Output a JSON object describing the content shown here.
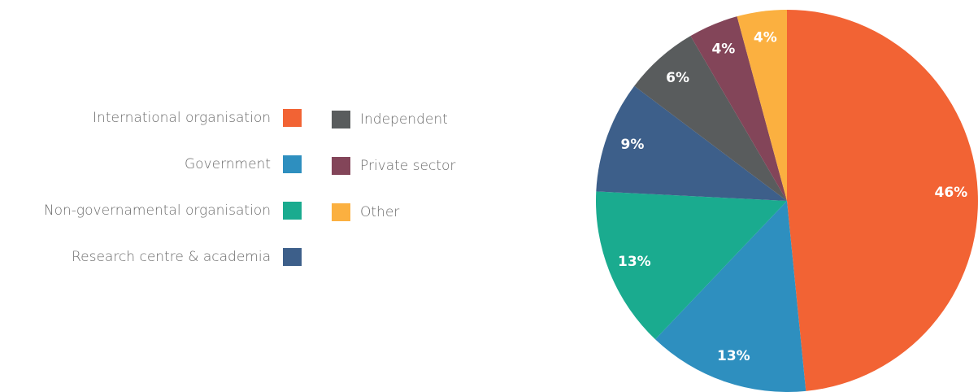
{
  "chart_data": {
    "type": "pie",
    "categories": [
      "International organisation",
      "Government",
      "Non-governamental organisation",
      "Research centre & academia",
      "Independent",
      "Private sector",
      "Other"
    ],
    "values": [
      46,
      13,
      13,
      9,
      6,
      4,
      4
    ],
    "value_labels": [
      "46%",
      "13%",
      "13%",
      "9%",
      "6%",
      "4%",
      "4%"
    ],
    "colors": [
      "#f26334",
      "#2e8fbf",
      "#1aab8f",
      "#3d5f8a",
      "#595c5d",
      "#834559",
      "#fbb040"
    ]
  }
}
